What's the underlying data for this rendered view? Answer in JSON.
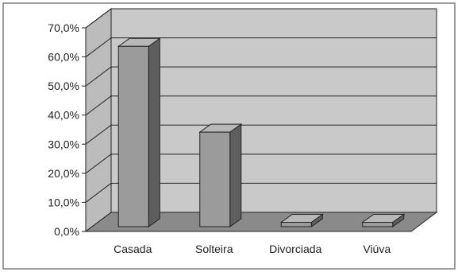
{
  "chart_data": {
    "type": "bar",
    "view": "3d",
    "categories": [
      "Casada",
      "Solteira",
      "Divorciada",
      "Viúva"
    ],
    "values": [
      62.0,
      32.5,
      1.5,
      1.5
    ],
    "ylim": [
      0,
      70
    ],
    "yticks": [
      0,
      10,
      20,
      30,
      40,
      50,
      60,
      70
    ],
    "ytick_labels": [
      "0,0%",
      "10,0%",
      "20,0%",
      "30,0%",
      "40,0%",
      "50,0%",
      "60,0%",
      "70,0%"
    ],
    "title": "",
    "xlabel": "",
    "ylabel": "",
    "grid": true,
    "legend": false
  },
  "colors": {
    "wall": "#c9c9c9",
    "side_wall": "#bcbcbc",
    "floor": "#8a8a8a",
    "bar_front": "#9b9b9b",
    "bar_side": "#5e5e5e",
    "bar_top": "#b8b8b8",
    "outline": "#222222",
    "frame": "#7a7a7a"
  }
}
